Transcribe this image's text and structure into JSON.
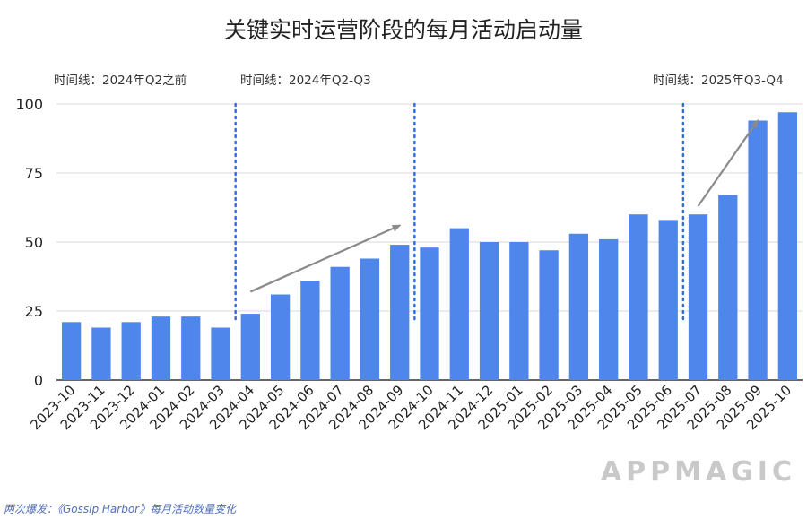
{
  "chart_data": {
    "type": "bar",
    "title": "关键实时运营阶段的每月活动启动量",
    "categories": [
      "2023-10",
      "2023-11",
      "2023-12",
      "2024-01",
      "2024-02",
      "2024-03",
      "2024-04",
      "2024-05",
      "2024-06",
      "2024-07",
      "2024-08",
      "2024-09",
      "2024-10",
      "2024-11",
      "2024-12",
      "2025-01",
      "2025-02",
      "2025-03",
      "2025-04",
      "2025-05",
      "2025-06",
      "2025-07",
      "2025-08",
      "2025-09",
      "2025-10"
    ],
    "values": [
      21,
      19,
      21,
      23,
      23,
      19,
      24,
      31,
      36,
      41,
      44,
      49,
      48,
      55,
      50,
      50,
      47,
      53,
      51,
      60,
      58,
      60,
      67,
      94,
      97
    ],
    "yticks": [
      0,
      25,
      50,
      75,
      100
    ],
    "ylim": [
      0,
      100
    ],
    "xlabel": "",
    "ylabel": "",
    "bar_color": "#4f86ec",
    "grid": true,
    "periods": [
      {
        "label": "时间线：2024年Q2之前"
      },
      {
        "label": "时间线：2024年Q2-Q3"
      },
      {
        "label": "时间线：2025年Q3-Q4"
      }
    ],
    "dividers_after": [
      "2024-03",
      "2024-09",
      "2025-06"
    ],
    "trend_arrows": [
      {
        "from": {
          "category": "2024-04",
          "value": 32
        },
        "to": {
          "category": "2024-09",
          "value": 56
        }
      },
      {
        "from": {
          "category": "2025-07",
          "value": 63
        },
        "to": {
          "category": "2025-09",
          "value": 94
        }
      }
    ]
  },
  "brand": "APPMAGIC",
  "source_note": "两次爆发：《Gossip Harbor》每月活动数量变化",
  "colors": {
    "bar": "#4f86ec",
    "divider": "#2f6fe0",
    "arrow": "#8a8a8a",
    "grid": "#d9d9d9"
  }
}
